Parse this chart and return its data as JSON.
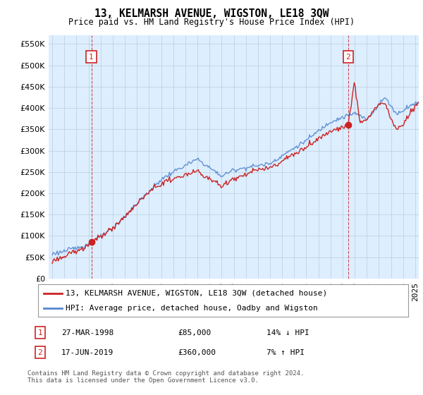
{
  "title": "13, KELMARSH AVENUE, WIGSTON, LE18 3QW",
  "subtitle": "Price paid vs. HM Land Registry's House Price Index (HPI)",
  "hpi_color": "#5588cc",
  "price_color": "#cc2222",
  "bg_color": "#ffffff",
  "chart_bg_color": "#ddeeff",
  "grid_color": "#bbccdd",
  "ylim": [
    0,
    570000
  ],
  "yticks": [
    0,
    50000,
    100000,
    150000,
    200000,
    250000,
    300000,
    350000,
    400000,
    450000,
    500000,
    550000
  ],
  "xlim_start": 1994.7,
  "xlim_end": 2025.3,
  "sale1_x": 1998.23,
  "sale1_y": 85000,
  "sale1_label": "1",
  "sale2_x": 2019.46,
  "sale2_y": 360000,
  "sale2_label": "2",
  "legend_line1": "13, KELMARSH AVENUE, WIGSTON, LE18 3QW (detached house)",
  "legend_line2": "HPI: Average price, detached house, Oadby and Wigston",
  "table_row1": [
    "1",
    "27-MAR-1998",
    "£85,000",
    "14% ↓ HPI"
  ],
  "table_row2": [
    "2",
    "17-JUN-2019",
    "£360,000",
    "7% ↑ HPI"
  ],
  "footer": "Contains HM Land Registry data © Crown copyright and database right 2024.\nThis data is licensed under the Open Government Licence v3.0."
}
